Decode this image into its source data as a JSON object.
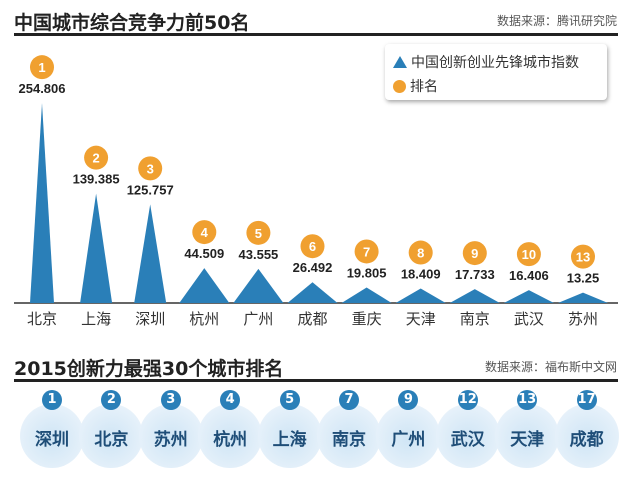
{
  "chart_data": {
    "type": "triangle-bar",
    "title": "中国城市综合竞争力前50名",
    "source": "数据来源：腾讯研究院",
    "legend": {
      "series": "中国创新创业先锋城市指数",
      "rank": "排名",
      "placement": "top-right"
    },
    "categories": [
      "北京",
      "上海",
      "深圳",
      "杭州",
      "广州",
      "成都",
      "重庆",
      "天津",
      "南京",
      "武汉",
      "苏州"
    ],
    "values": [
      254.806,
      139.385,
      125.757,
      44.509,
      43.555,
      26.492,
      19.805,
      18.409,
      17.733,
      16.406,
      13.25
    ],
    "value_labels": [
      "254.806",
      "139.385",
      "125.757",
      "44.509",
      "43.555",
      "26.492",
      "19.805",
      "18.409",
      "17.733",
      "16.406",
      "13.25"
    ],
    "ranks": [
      "1",
      "2",
      "3",
      "4",
      "5",
      "6",
      "7",
      "8",
      "9",
      "10",
      "13"
    ],
    "colors": {
      "triangle": "#2a7fb8",
      "rank": "#f0a030"
    }
  },
  "ranking": {
    "title": "2015创新力最强30个城市排名",
    "source": "数据来源：福布斯中文网",
    "items": [
      {
        "rank": "1",
        "city": "深圳"
      },
      {
        "rank": "2",
        "city": "北京"
      },
      {
        "rank": "3",
        "city": "苏州"
      },
      {
        "rank": "4",
        "city": "杭州"
      },
      {
        "rank": "5",
        "city": "上海"
      },
      {
        "rank": "7",
        "city": "南京"
      },
      {
        "rank": "9",
        "city": "广州"
      },
      {
        "rank": "12",
        "city": "武汉"
      },
      {
        "rank": "13",
        "city": "天津"
      },
      {
        "rank": "17",
        "city": "成都"
      }
    ]
  }
}
